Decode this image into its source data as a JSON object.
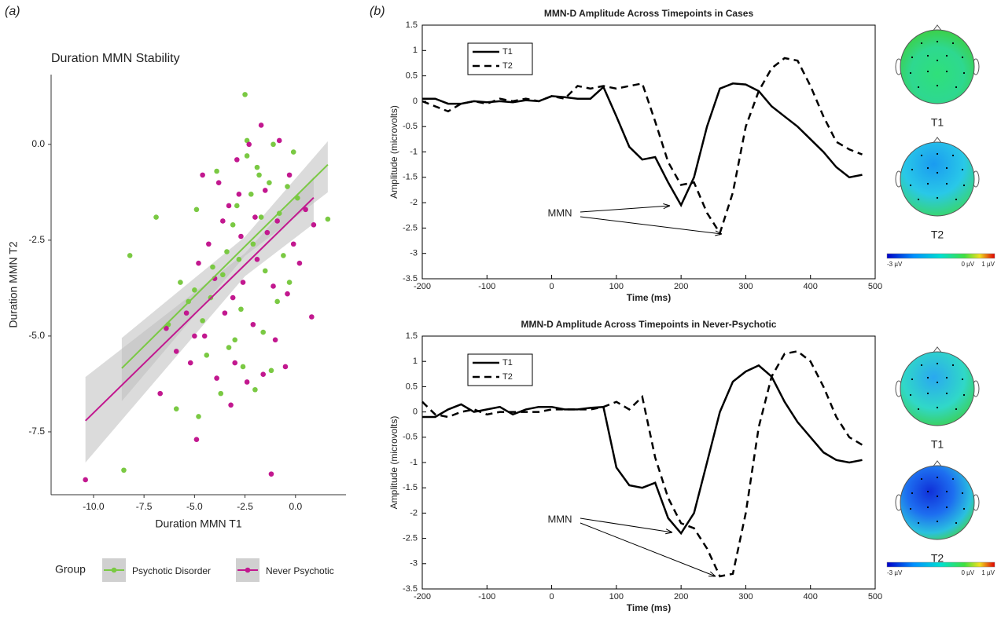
{
  "panel_labels": [
    "(a)",
    "(b)"
  ],
  "chart_data": [
    {
      "type": "scatter",
      "title": "Duration MMN Stability",
      "xlabel": "Duration MMN T1",
      "ylabel": "Duration MMN T2",
      "xlim": [
        -12.1,
        2.5
      ],
      "ylim": [
        -9.14,
        1.82
      ],
      "xticks": [
        {
          "value": -10,
          "label": "-10.0"
        },
        {
          "value": -7.5,
          "label": "-7.5"
        },
        {
          "value": -5,
          "label": "-5.0"
        },
        {
          "value": -2.5,
          "label": "-2.5"
        },
        {
          "value": 0,
          "label": "0.0"
        }
      ],
      "yticks": [
        {
          "value": 0,
          "label": "0.0"
        },
        {
          "value": -2.5,
          "label": "-2.5"
        },
        {
          "value": -5,
          "label": "-5.0"
        },
        {
          "value": -7.5,
          "label": "-7.5"
        }
      ],
      "grid": false,
      "legend": "bottom",
      "legend_title": "Group",
      "series": [
        {
          "name": "Psychotic Disorder",
          "color": "#7ac943",
          "x": [
            -2.5,
            -8.2,
            -6.9,
            -8.5,
            -5.9,
            -4.8,
            -4.9,
            1.6,
            -0.3,
            -3.9,
            -2.4,
            -1.9,
            -1.3,
            -1.7,
            -3.1,
            -2.8,
            -3.6,
            -4.2,
            -4.6,
            -3.3,
            -2.6,
            -2.0,
            -3.7,
            -1.6,
            -0.9,
            -0.6,
            0.1,
            -0.1,
            -1.1,
            -2.2,
            -2.9,
            -3.4,
            -4.1,
            -5.0,
            -5.7,
            -6.3,
            -5.3,
            -2.1,
            -1.5,
            -0.8,
            -2.7,
            -3.0,
            -4.4,
            -1.2,
            -1.8,
            -2.4,
            -0.4
          ],
          "values": [
            1.3,
            -2.9,
            -1.9,
            -8.5,
            -6.9,
            -7.1,
            -1.7,
            -1.95,
            -3.6,
            -0.7,
            0.1,
            -0.6,
            -1.0,
            -1.9,
            -2.1,
            -3.0,
            -3.4,
            -4.0,
            -4.6,
            -5.3,
            -5.8,
            -6.4,
            -6.5,
            -4.9,
            -4.1,
            -2.9,
            -1.4,
            -0.2,
            0.0,
            -1.3,
            -1.6,
            -2.8,
            -3.2,
            -3.8,
            -3.6,
            -4.7,
            -4.1,
            -2.6,
            -3.3,
            -1.8,
            -4.3,
            -5.1,
            -5.5,
            -5.9,
            -0.8,
            -0.3,
            -1.1
          ],
          "fit": {
            "x": [
              -8.6,
              -2.5,
              1.6
            ],
            "values": [
              -5.84,
              -2.66,
              -0.53
            ],
            "lower": [
              -6.7,
              -2.91,
              -1.25
            ],
            "upper": [
              -5.05,
              -2.41,
              0.08
            ]
          }
        },
        {
          "name": "Never Psychotic",
          "color": "#c2188f",
          "x": [
            -10.4,
            -1.2,
            -4.9,
            -3.2,
            -3.9,
            -5.2,
            -5.9,
            -6.7,
            -4.6,
            -1.7,
            -2.3,
            -0.8,
            -0.3,
            0.8,
            -0.5,
            -1.0,
            -2.1,
            -3.0,
            -3.5,
            -4.0,
            -4.5,
            -5.0,
            -2.6,
            -1.9,
            -1.4,
            -0.9,
            0.5,
            0.9,
            -3.8,
            -3.3,
            -2.8,
            -2.0,
            -2.7,
            -4.3,
            -3.6,
            -1.5,
            -1.1,
            -2.4,
            -1.6,
            -0.4,
            0.2,
            -5.4,
            -4.8,
            -2.9,
            -3.1,
            -6.4,
            -0.1
          ],
          "values": [
            -8.75,
            -8.6,
            -7.7,
            -6.8,
            -6.1,
            -5.7,
            -5.4,
            -6.5,
            -0.8,
            0.5,
            0.0,
            0.1,
            -0.8,
            -4.5,
            -5.8,
            -5.1,
            -4.7,
            -5.7,
            -4.4,
            -3.5,
            -5.0,
            -5.0,
            -3.6,
            -3.0,
            -2.3,
            -2.0,
            -1.7,
            -2.1,
            -1.0,
            -1.6,
            -1.3,
            -1.9,
            -2.4,
            -2.6,
            -2.0,
            -1.2,
            -3.7,
            -6.2,
            -6.0,
            -3.9,
            -3.1,
            -4.4,
            -3.1,
            -0.4,
            -4.0,
            -4.8,
            -2.6
          ],
          "fit": {
            "x": [
              -10.4,
              -2.5,
              0.9
            ],
            "values": [
              -7.21,
              -3.14,
              -1.39
            ],
            "lower": [
              -8.3,
              -3.44,
              -2.07
            ],
            "upper": [
              -6.07,
              -2.84,
              -0.84
            ]
          }
        }
      ]
    },
    {
      "type": "line",
      "title": "MMN-D Amplitude Across Timepoints in Cases",
      "xlabel": "Time (ms)",
      "ylabel": "Amplitude (microvolts)",
      "xlim": [
        -200,
        500
      ],
      "ylim": [
        -3.5,
        1.5
      ],
      "xticks": [
        -200,
        -100,
        0,
        100,
        200,
        300,
        400,
        500
      ],
      "yticks": [
        1.5,
        1,
        0.5,
        0,
        -0.5,
        -1,
        -1.5,
        -2,
        -2.5,
        -3,
        -3.5
      ],
      "legend": "upper left",
      "annotation": "MMN",
      "x": [
        -200,
        -180,
        -160,
        -140,
        -120,
        -100,
        -80,
        -60,
        -40,
        -20,
        0,
        20,
        40,
        60,
        80,
        100,
        120,
        140,
        160,
        180,
        200,
        220,
        240,
        260,
        280,
        300,
        320,
        340,
        360,
        380,
        400,
        420,
        440,
        460,
        480
      ],
      "series": [
        {
          "name": "T1",
          "color": "#000000",
          "dash": false,
          "values": [
            0.05,
            0.05,
            -0.05,
            -0.05,
            0.0,
            -0.02,
            0.0,
            -0.02,
            0.02,
            0.0,
            0.1,
            0.08,
            0.05,
            0.05,
            0.28,
            -0.3,
            -0.9,
            -1.15,
            -1.1,
            -1.6,
            -2.05,
            -1.5,
            -0.5,
            0.25,
            0.35,
            0.33,
            0.2,
            -0.1,
            -0.3,
            -0.5,
            -0.75,
            -1.0,
            -1.3,
            -1.5,
            -1.45
          ]
        },
        {
          "name": "T2",
          "color": "#000000",
          "dash": true,
          "values": [
            0.0,
            -0.1,
            -0.2,
            -0.05,
            0.0,
            -0.05,
            0.05,
            0.0,
            0.05,
            0.0,
            0.1,
            0.05,
            0.3,
            0.25,
            0.3,
            0.25,
            0.3,
            0.35,
            -0.4,
            -1.2,
            -1.65,
            -1.6,
            -2.2,
            -2.6,
            -1.8,
            -0.5,
            0.2,
            0.65,
            0.85,
            0.8,
            0.3,
            -0.3,
            -0.8,
            -0.95,
            -1.05
          ]
        }
      ],
      "topomap_labels": [
        "T1",
        "T2"
      ],
      "colorbar_labels": [
        "-3 µV",
        "0 µV",
        "1 µV"
      ]
    },
    {
      "type": "line",
      "title": "MMN-D Amplitude Across Timepoints in Never-Psychotic",
      "xlabel": "Time (ms)",
      "ylabel": "Amplitude (microvolts)",
      "xlim": [
        -200,
        500
      ],
      "ylim": [
        -3.5,
        1.5
      ],
      "xticks": [
        -200,
        -100,
        0,
        100,
        200,
        300,
        400,
        500
      ],
      "yticks": [
        1.5,
        1,
        0.5,
        0,
        -0.5,
        -1,
        -1.5,
        -2,
        -2.5,
        -3,
        -3.5
      ],
      "legend": "upper left",
      "annotation": "MMN",
      "x": [
        -200,
        -180,
        -160,
        -140,
        -120,
        -100,
        -80,
        -60,
        -40,
        -20,
        0,
        20,
        40,
        60,
        80,
        100,
        120,
        140,
        160,
        180,
        200,
        220,
        240,
        260,
        280,
        300,
        320,
        340,
        360,
        380,
        400,
        420,
        440,
        460,
        480
      ],
      "series": [
        {
          "name": "T1",
          "color": "#000000",
          "dash": false,
          "values": [
            -0.1,
            -0.1,
            0.05,
            0.15,
            0.0,
            0.05,
            0.1,
            -0.05,
            0.05,
            0.1,
            0.1,
            0.05,
            0.05,
            0.08,
            0.1,
            -1.1,
            -1.45,
            -1.5,
            -1.4,
            -2.1,
            -2.4,
            -2.0,
            -1.0,
            0.0,
            0.6,
            0.8,
            0.92,
            0.7,
            0.2,
            -0.2,
            -0.5,
            -0.8,
            -0.95,
            -1.0,
            -0.95
          ]
        },
        {
          "name": "T2",
          "color": "#000000",
          "dash": true,
          "values": [
            0.2,
            -0.05,
            -0.1,
            0.0,
            0.05,
            -0.05,
            0.0,
            0.0,
            0.0,
            0.0,
            0.05,
            0.05,
            0.05,
            0.05,
            0.1,
            0.2,
            0.05,
            0.3,
            -0.9,
            -1.7,
            -2.2,
            -2.3,
            -2.7,
            -3.25,
            -3.2,
            -2.0,
            -0.3,
            0.7,
            1.15,
            1.2,
            1.0,
            0.5,
            -0.1,
            -0.5,
            -0.65
          ]
        }
      ],
      "topomap_labels": [
        "T1",
        "T2"
      ],
      "colorbar_labels": [
        "-3 µV",
        "0 µV",
        "1 µV"
      ]
    }
  ]
}
